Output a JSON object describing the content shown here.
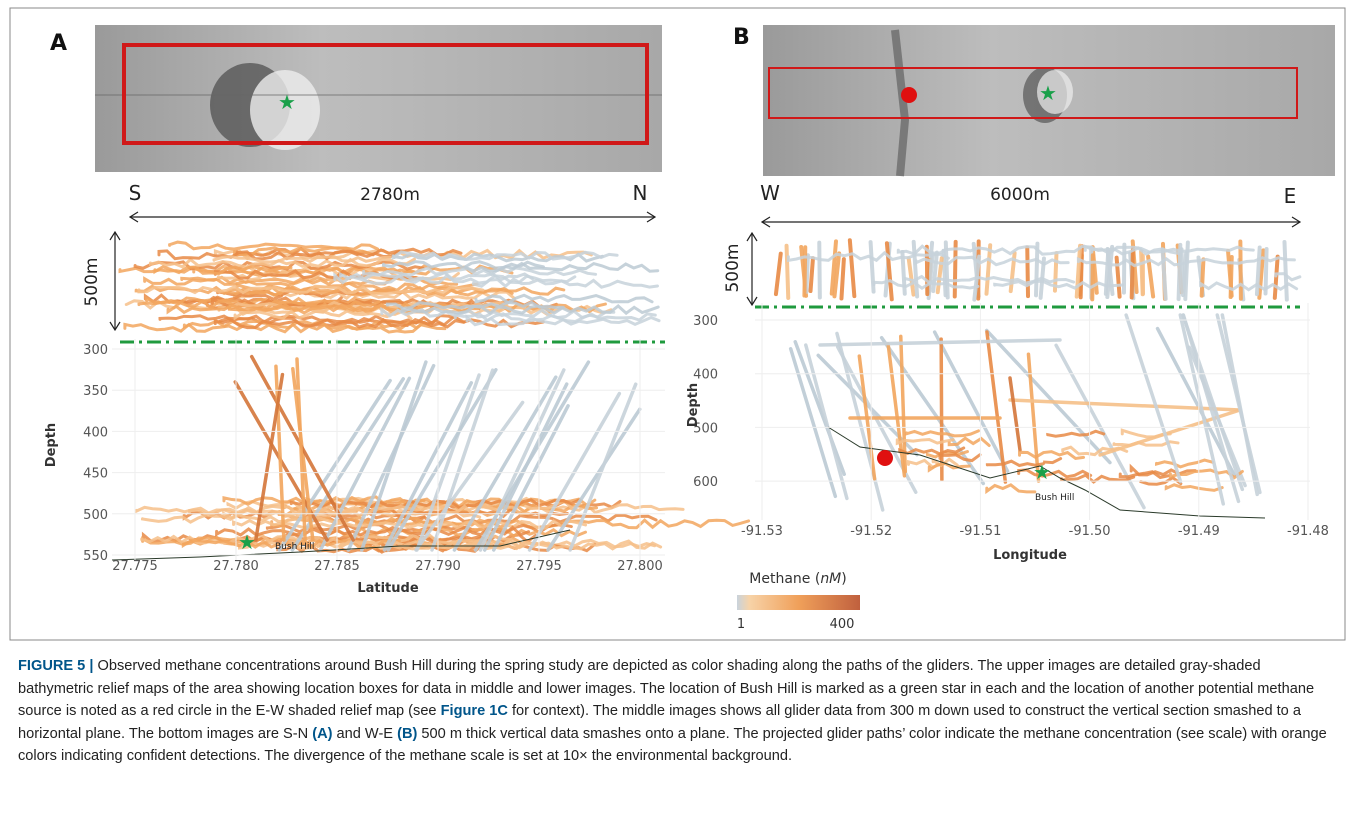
{
  "panels": [
    {
      "label": "A",
      "left": "S",
      "right": "N",
      "span": "2780m",
      "thickness": "500m",
      "y_label": "Depth",
      "x_label": "Latitude",
      "y_ticks": [
        "300",
        "350",
        "400",
        "450",
        "500",
        "550"
      ],
      "x_ticks": [
        "27.775",
        "27.780",
        "27.785",
        "27.790",
        "27.795",
        "27.800"
      ],
      "marker_label": "Bush Hill"
    },
    {
      "label": "B",
      "left": "W",
      "right": "E",
      "span": "6000m",
      "thickness": "500m",
      "y_label": "Depth",
      "x_label": "Longitude",
      "y_ticks": [
        "300",
        "400",
        "500",
        "600"
      ],
      "x_ticks": [
        "-91.53",
        "-91.52",
        "-91.51",
        "-91.50",
        "-91.49",
        "-91.48"
      ],
      "marker_label": "Bush Hill"
    }
  ],
  "colorbar": {
    "title": "Methane (",
    "title_unit": "nM",
    "title_end": ")",
    "low": "1",
    "high": "400"
  },
  "caption": [
    {
      "text": "FIGURE 5 |",
      "bold": true
    },
    {
      "text": " Observed methane concentrations around Bush Hill during the spring study are depicted as color shading along the paths of the gliders. The upper images are detailed gray-shaded bathymetric relief maps of the area showing location boxes for data in middle and lower images. The location of Bush Hill is marked as a green star in each and the location of another potential methane source is noted as a red circle in the E-W shaded relief map (see ",
      "bold": false
    },
    {
      "text": "Figure 1C",
      "bold": true
    },
    {
      "text": " for context). The middle images shows all glider data from 300 m down used to construct the vertical section smashed to a horizontal plane. The bottom images are S-N ",
      "bold": false
    },
    {
      "text": "(A)",
      "bold": true
    },
    {
      "text": " and W-E ",
      "bold": false
    },
    {
      "text": "(B)",
      "bold": true
    },
    {
      "text": " 500 m thick vertical data smashes onto a plane. The projected glider paths’ color indicate the methane concentration (see scale) with orange colors indicating confident detections. The divergence of the methane scale is set at 10× the environmental background.",
      "bold": false
    }
  ]
}
